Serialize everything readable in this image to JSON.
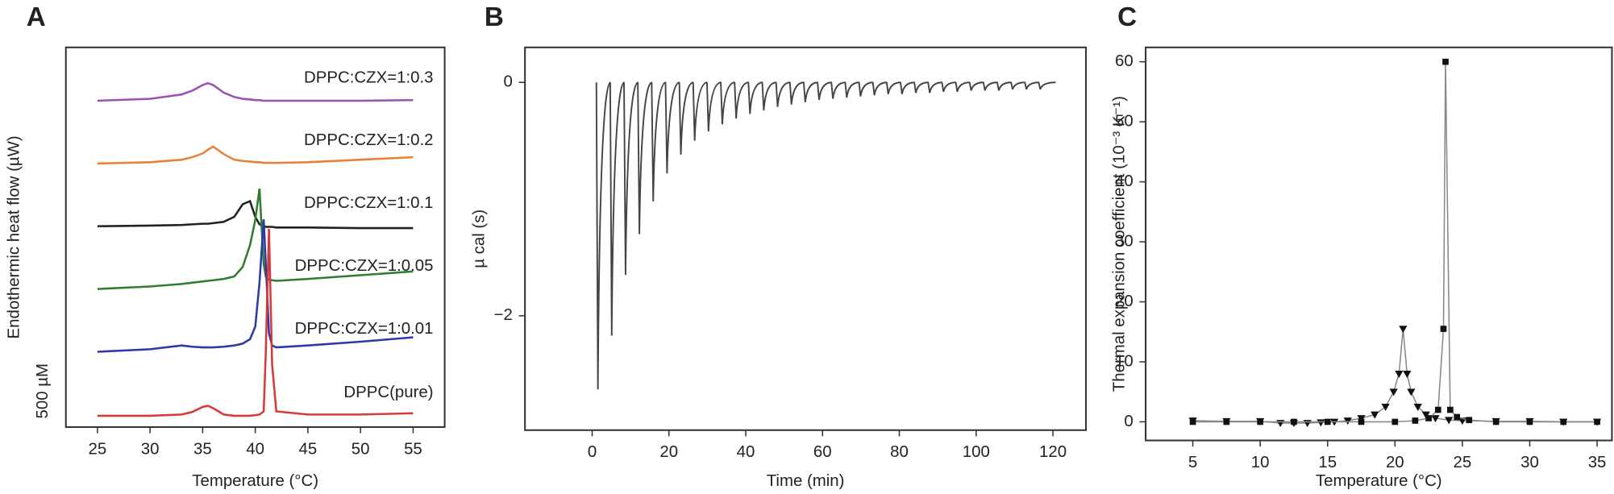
{
  "chart_data": [
    {
      "type": "line",
      "panel": "A",
      "xlabel": "Temperature (°C)",
      "ylabel": "Endothermic heat flow (µW)",
      "scale_label": "500 µM",
      "xlim": [
        22,
        58
      ],
      "xticks": [
        25,
        30,
        35,
        40,
        45,
        50,
        55
      ],
      "ylim": [
        0,
        6.05
      ],
      "x": [
        25,
        30,
        33,
        34,
        35,
        35.5,
        36,
        37,
        38,
        38.8,
        39.5,
        40,
        40.4,
        40.8,
        41,
        41.3,
        41.6,
        42,
        45,
        50,
        55
      ],
      "series": [
        {
          "name": "DPPC:CZX=1:0.3",
          "color": "#9b4fb5",
          "values": [
            5.2,
            5.23,
            5.3,
            5.36,
            5.45,
            5.48,
            5.45,
            5.33,
            5.26,
            5.23,
            5.22,
            5.21,
            5.21,
            5.2,
            5.2,
            5.2,
            5.2,
            5.2,
            5.2,
            5.2,
            5.21
          ]
        },
        {
          "name": "DPPC:CZX=1:0.2",
          "color": "#e8803a",
          "values": [
            4.2,
            4.22,
            4.26,
            4.3,
            4.36,
            4.42,
            4.47,
            4.35,
            4.26,
            4.24,
            4.23,
            4.22,
            4.22,
            4.21,
            4.21,
            4.21,
            4.21,
            4.21,
            4.22,
            4.26,
            4.3
          ]
        },
        {
          "name": "DPPC:CZX=1:0.1",
          "color": "#222222",
          "values": [
            3.2,
            3.21,
            3.22,
            3.23,
            3.24,
            3.24,
            3.25,
            3.27,
            3.35,
            3.55,
            3.6,
            3.35,
            3.23,
            3.2,
            3.19,
            3.19,
            3.19,
            3.18,
            3.18,
            3.17,
            3.17
          ]
        },
        {
          "name": "DPPC:CZX=1:0.05",
          "color": "#2e7d32",
          "values": [
            2.2,
            2.24,
            2.28,
            2.3,
            2.32,
            2.33,
            2.34,
            2.36,
            2.4,
            2.55,
            2.9,
            3.3,
            3.8,
            2.6,
            2.4,
            2.35,
            2.34,
            2.33,
            2.36,
            2.42,
            2.48
          ]
        },
        {
          "name": "DPPC:CZX=1:0.01",
          "color": "#2b3aa8",
          "values": [
            1.2,
            1.24,
            1.3,
            1.28,
            1.27,
            1.27,
            1.27,
            1.28,
            1.3,
            1.33,
            1.4,
            1.6,
            2.3,
            3.31,
            2.6,
            1.5,
            1.3,
            1.27,
            1.3,
            1.36,
            1.43
          ]
        },
        {
          "name": "DPPC(pure)",
          "color": "#d63a3a",
          "values": [
            0.18,
            0.18,
            0.2,
            0.24,
            0.32,
            0.34,
            0.3,
            0.2,
            0.18,
            0.18,
            0.18,
            0.19,
            0.2,
            0.25,
            1.2,
            3.16,
            1.0,
            0.25,
            0.2,
            0.2,
            0.22
          ]
        }
      ]
    },
    {
      "type": "spikes",
      "panel": "B",
      "xlabel": "Time (min)",
      "ylabel": "µ cal (s)",
      "xlim": [
        -17.5,
        128.6
      ],
      "xticks": [
        0,
        20,
        40,
        60,
        80,
        100,
        120
      ],
      "ylim": [
        -2.98,
        0.3
      ],
      "yticks": [
        {
          "value": -2,
          "label": "−2"
        },
        0
      ],
      "color": "#444444",
      "x": [
        1.5,
        5.1,
        8.7,
        12.3,
        15.9,
        19.5,
        23.1,
        26.7,
        30.3,
        33.9,
        37.5,
        41.1,
        44.7,
        48.3,
        51.9,
        55.5,
        59.1,
        62.7,
        66.3,
        69.9,
        73.5,
        77.1,
        80.7,
        84.3,
        87.9,
        91.5,
        95.1,
        98.7,
        102.3,
        105.9,
        109.5,
        113.1,
        116.7
      ],
      "values": [
        -2.63,
        -2.17,
        -1.65,
        -1.3,
        -1.02,
        -0.78,
        -0.62,
        -0.5,
        -0.42,
        -0.36,
        -0.31,
        -0.27,
        -0.24,
        -0.21,
        -0.19,
        -0.17,
        -0.15,
        -0.14,
        -0.13,
        -0.12,
        -0.11,
        -0.1,
        -0.1,
        -0.09,
        -0.09,
        -0.08,
        -0.08,
        -0.07,
        -0.07,
        -0.07,
        -0.06,
        -0.06,
        -0.06
      ]
    },
    {
      "type": "scatter-line",
      "panel": "C",
      "xlabel": "Temperature (°C)",
      "ylabel": "Thermal expansion coefficient (10⁻³ K⁻¹)",
      "xlim": [
        1.5,
        36.1
      ],
      "xticks": [
        5,
        10,
        15,
        20,
        25,
        30,
        35
      ],
      "ylim": [
        -3.1,
        62.4
      ],
      "yticks": [
        0,
        10,
        20,
        30,
        40,
        50,
        60
      ],
      "line_color": "#888888",
      "series": [
        {
          "marker": "triangle-down",
          "color": "#111111",
          "x": [
            5,
            7.5,
            10,
            11.5,
            12.5,
            13.5,
            14.5,
            15.5,
            16.5,
            17.5,
            18.5,
            19.3,
            19.9,
            20.3,
            20.6,
            20.9,
            21.2,
            21.7,
            22.3,
            23,
            24,
            25,
            27.5,
            30,
            32.5,
            35
          ],
          "values": [
            0.2,
            0.1,
            0.1,
            -0.2,
            -0.2,
            -0.2,
            -0.1,
            0,
            0.2,
            0.6,
            1.2,
            2.5,
            5,
            8,
            15.5,
            8,
            5,
            2.5,
            1.2,
            0.6,
            0.3,
            0.2,
            0.1,
            0.1,
            0,
            0
          ]
        },
        {
          "marker": "square",
          "color": "#111111",
          "x": [
            5,
            7.5,
            10,
            12.5,
            15,
            17.5,
            20,
            21.5,
            22.5,
            23.2,
            23.6,
            23.75,
            24.1,
            24.6,
            25.5,
            27.5,
            30,
            32.5,
            35
          ],
          "values": [
            0,
            0,
            0,
            0,
            0,
            0,
            0,
            0.2,
            0.6,
            2,
            15.5,
            60,
            2,
            0.8,
            0.3,
            0,
            0,
            0,
            0
          ]
        }
      ]
    }
  ]
}
